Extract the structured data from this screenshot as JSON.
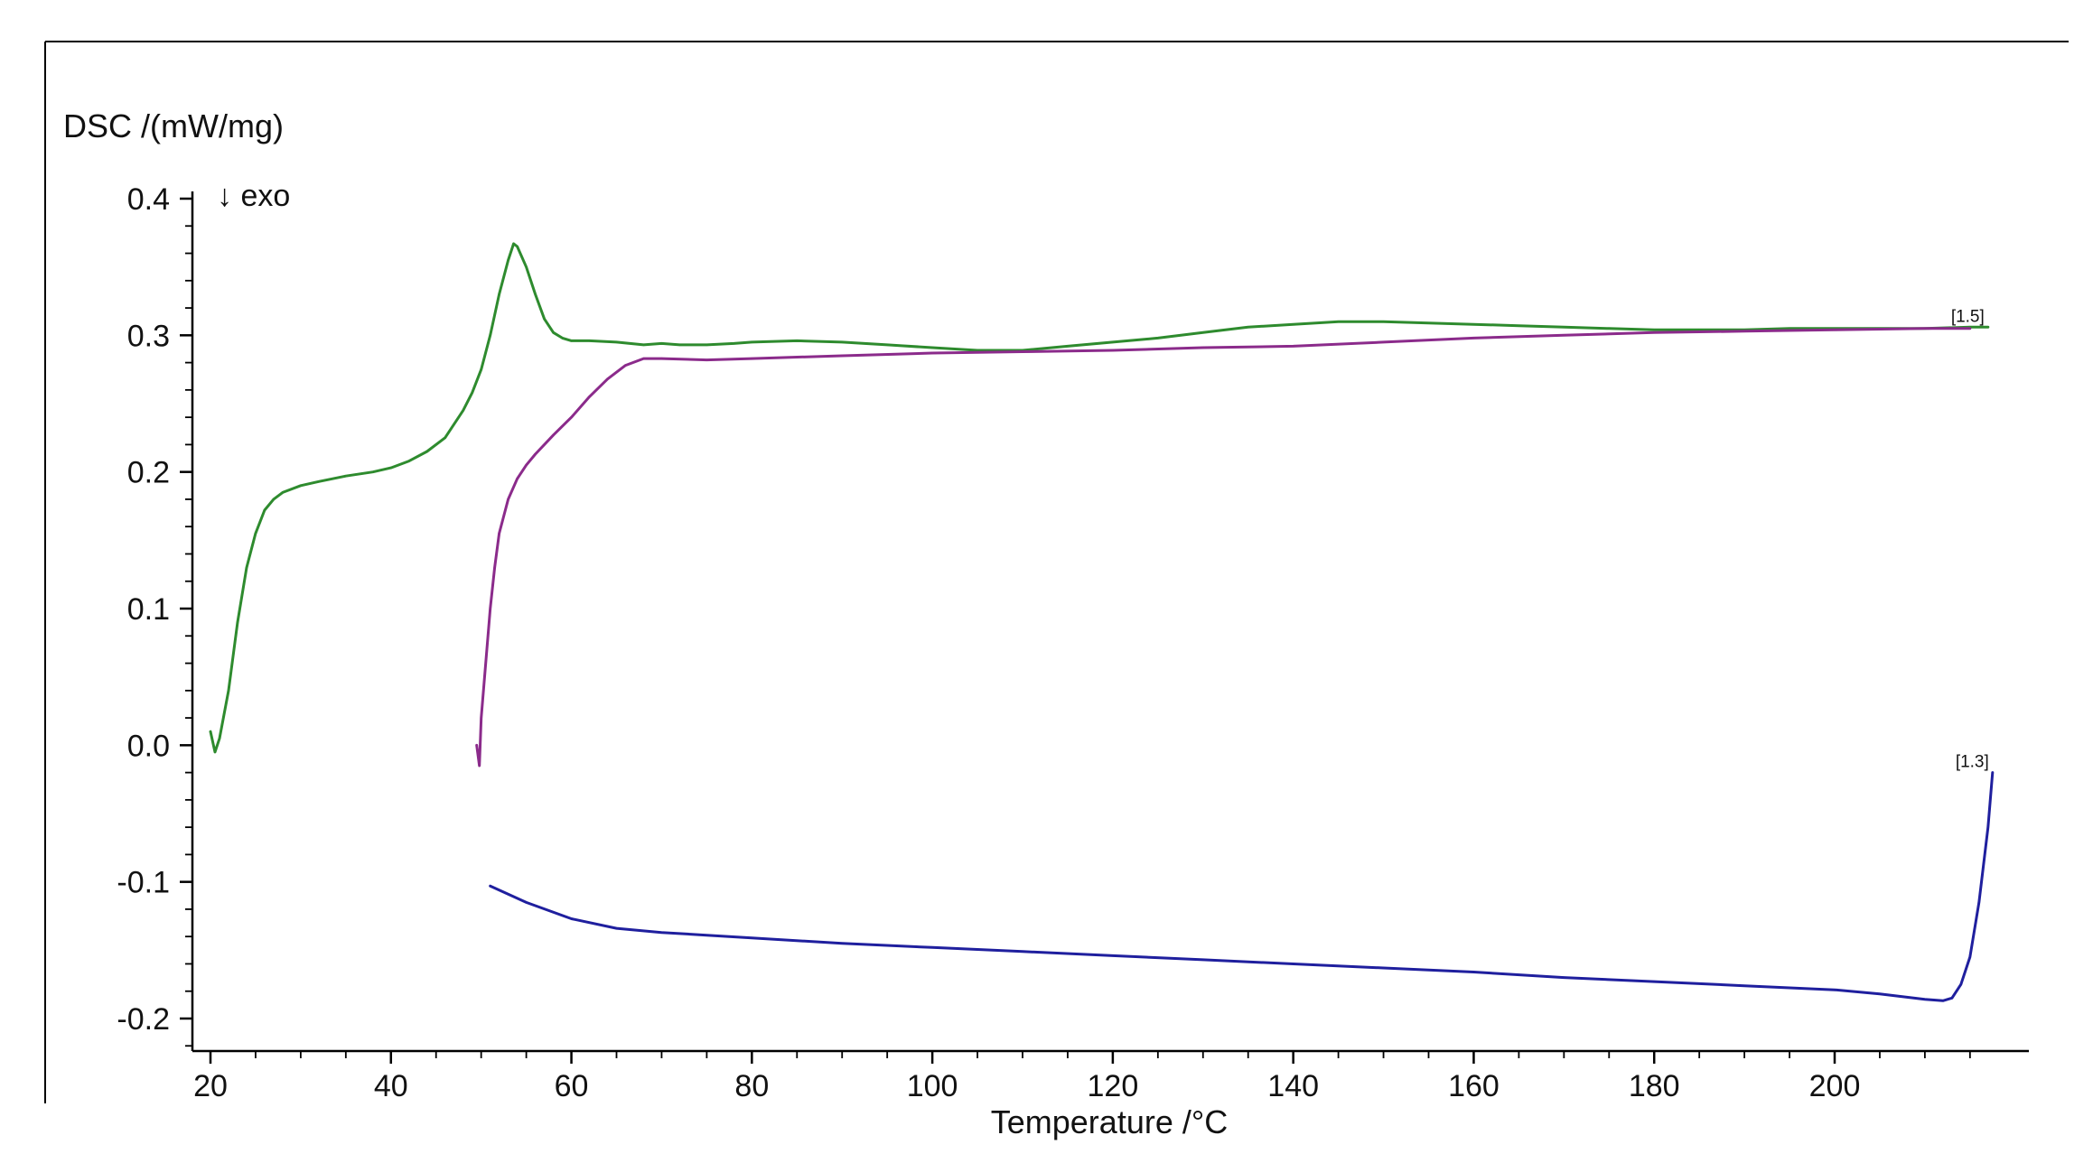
{
  "chart_data": {
    "type": "line",
    "ylabel": "DSC /(mW/mg)",
    "xlabel": "Temperature /°C",
    "annotation": "↓ exo",
    "xlim": [
      18,
      218
    ],
    "ylim": [
      -0.22,
      0.4
    ],
    "xticks": [
      "20",
      "40",
      "60",
      "80",
      "100",
      "120",
      "140",
      "160",
      "180",
      "200"
    ],
    "yticks": [
      "0.4",
      "0.3",
      "0.2",
      "0.1",
      "0.0",
      "-0.1",
      "-0.2"
    ],
    "grid": false,
    "legend": "none",
    "series": [
      {
        "color": "#2e8b2e",
        "end_label": "[1.5]",
        "x": [
          20,
          20.5,
          21,
          22,
          23,
          24,
          25,
          26,
          27,
          28,
          30,
          32,
          35,
          38,
          40,
          42,
          44,
          46,
          47,
          48,
          49,
          50,
          51,
          52,
          53,
          53.6,
          54,
          55,
          56,
          57,
          58,
          59,
          60,
          62,
          65,
          68,
          70,
          72,
          75,
          78,
          80,
          85,
          90,
          95,
          100,
          105,
          110,
          115,
          120,
          125,
          130,
          135,
          140,
          145,
          150,
          155,
          160,
          165,
          170,
          175,
          180,
          185,
          190,
          195,
          200,
          205,
          210,
          215,
          217
        ],
        "y": [
          0.01,
          -0.005,
          0.005,
          0.04,
          0.09,
          0.13,
          0.155,
          0.172,
          0.18,
          0.185,
          0.19,
          0.193,
          0.197,
          0.2,
          0.203,
          0.208,
          0.215,
          0.225,
          0.235,
          0.245,
          0.258,
          0.275,
          0.3,
          0.33,
          0.355,
          0.367,
          0.365,
          0.35,
          0.33,
          0.312,
          0.302,
          0.298,
          0.296,
          0.296,
          0.295,
          0.293,
          0.294,
          0.293,
          0.293,
          0.294,
          0.295,
          0.296,
          0.295,
          0.293,
          0.291,
          0.289,
          0.289,
          0.292,
          0.295,
          0.298,
          0.302,
          0.306,
          0.308,
          0.31,
          0.31,
          0.309,
          0.308,
          0.307,
          0.306,
          0.305,
          0.304,
          0.304,
          0.304,
          0.305,
          0.305,
          0.305,
          0.305,
          0.306,
          0.306
        ]
      },
      {
        "color": "#8b2b8b",
        "x": [
          49.5,
          49.8,
          50,
          50.5,
          51,
          51.5,
          52,
          53,
          54,
          55,
          56,
          58,
          60,
          62,
          64,
          66,
          68,
          70,
          75,
          80,
          90,
          100,
          110,
          120,
          130,
          140,
          150,
          160,
          170,
          180,
          190,
          200,
          210,
          215
        ],
        "y": [
          0.0,
          -0.015,
          0.02,
          0.06,
          0.1,
          0.13,
          0.155,
          0.18,
          0.195,
          0.205,
          0.213,
          0.227,
          0.24,
          0.255,
          0.268,
          0.278,
          0.283,
          0.283,
          0.282,
          0.283,
          0.285,
          0.287,
          0.288,
          0.289,
          0.291,
          0.292,
          0.295,
          0.298,
          0.3,
          0.302,
          0.303,
          0.304,
          0.305,
          0.305
        ]
      },
      {
        "color": "#1f1f9e",
        "end_label": "[1.3]",
        "x": [
          51,
          55,
          60,
          65,
          70,
          75,
          80,
          90,
          100,
          110,
          120,
          130,
          140,
          150,
          160,
          170,
          180,
          190,
          200,
          205,
          210,
          212,
          213,
          214,
          215,
          216,
          217,
          217.5
        ],
        "y": [
          -0.103,
          -0.115,
          -0.127,
          -0.134,
          -0.137,
          -0.139,
          -0.141,
          -0.145,
          -0.148,
          -0.151,
          -0.154,
          -0.157,
          -0.16,
          -0.163,
          -0.166,
          -0.17,
          -0.173,
          -0.176,
          -0.179,
          -0.182,
          -0.186,
          -0.187,
          -0.185,
          -0.175,
          -0.155,
          -0.115,
          -0.06,
          -0.02
        ]
      }
    ]
  }
}
